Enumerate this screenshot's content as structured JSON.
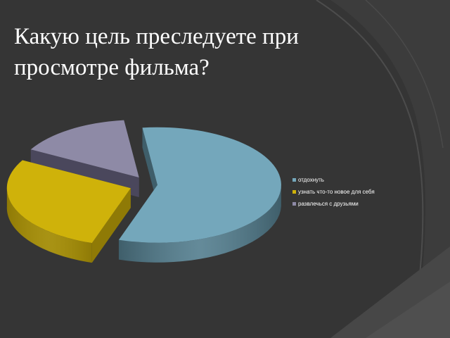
{
  "slide": {
    "title": "Какую цель преследуете при просмотре фильма?"
  },
  "colors": {
    "background": "#3a3a3a",
    "text": "#ffffff"
  },
  "chart_data": {
    "type": "pie",
    "style": "3d-exploded",
    "categories": [
      "отдохнуть",
      "узнать что-то новое для себя",
      "развлечься с друзьями"
    ],
    "values": [
      57,
      28,
      15
    ],
    "colors": [
      "#74a7bb",
      "#cfb20a",
      "#8e8aa6"
    ],
    "side_colors": [
      "#3f5e6a",
      "#8f7a06",
      "#4a475c"
    ],
    "legend": {
      "position": "right",
      "items": [
        "отдохнуть",
        "узнать что-то новое для себя",
        "развлечься с друзьями"
      ]
    },
    "title": ""
  }
}
